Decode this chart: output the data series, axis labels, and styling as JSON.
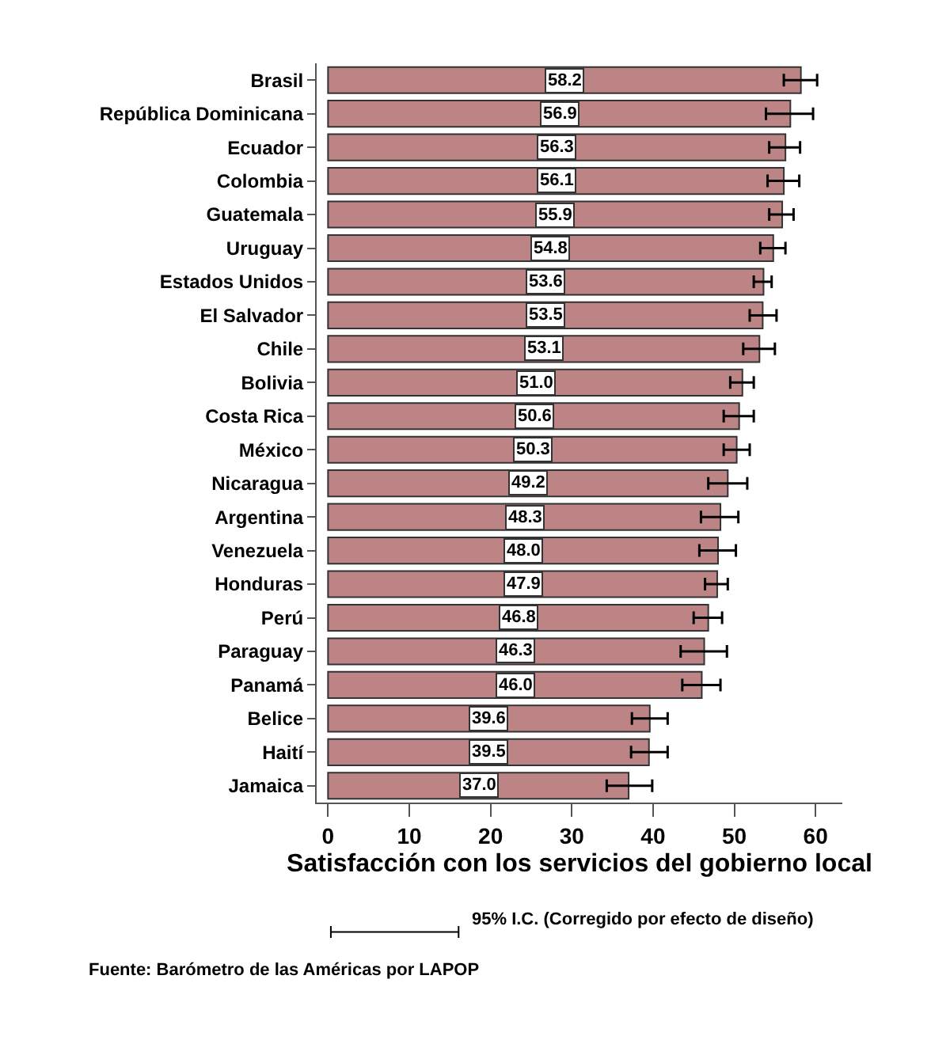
{
  "chart_data": {
    "type": "bar",
    "orientation": "horizontal",
    "xlabel": "Satisfacción con los servicios del gobierno local",
    "categories": [
      "Brasil",
      "República Dominicana",
      "Ecuador",
      "Colombia",
      "Guatemala",
      "Uruguay",
      "Estados Unidos",
      "El Salvador",
      "Chile",
      "Bolivia",
      "Costa Rica",
      "México",
      "Nicaragua",
      "Argentina",
      "Venezuela",
      "Honduras",
      "Perú",
      "Paraguay",
      "Panamá",
      "Belice",
      "Haití",
      "Jamaica"
    ],
    "values": [
      58.2,
      56.9,
      56.3,
      56.1,
      55.9,
      54.8,
      53.6,
      53.5,
      53.1,
      51.0,
      50.6,
      50.3,
      49.2,
      48.3,
      48.0,
      47.9,
      46.8,
      46.3,
      46.0,
      39.6,
      39.5,
      37.0
    ],
    "errors": [
      [
        56.1,
        60.2
      ],
      [
        53.9,
        59.7
      ],
      [
        54.3,
        58.1
      ],
      [
        54.1,
        58.0
      ],
      [
        54.3,
        57.3
      ],
      [
        53.2,
        56.3
      ],
      [
        52.4,
        54.6
      ],
      [
        51.9,
        55.2
      ],
      [
        51.1,
        55.0
      ],
      [
        49.5,
        52.4
      ],
      [
        48.7,
        52.4
      ],
      [
        48.7,
        51.9
      ],
      [
        46.8,
        51.6
      ],
      [
        45.9,
        50.5
      ],
      [
        45.7,
        50.2
      ],
      [
        46.4,
        49.2
      ],
      [
        45.0,
        48.5
      ],
      [
        43.4,
        49.1
      ],
      [
        43.6,
        48.3
      ],
      [
        37.4,
        41.8
      ],
      [
        37.3,
        41.8
      ],
      [
        34.3,
        39.9
      ]
    ],
    "color": "#bc8484",
    "value_labels": [
      "58.2",
      "56.9",
      "56.3",
      "56.1",
      "55.9",
      "54.8",
      "53.6",
      "53.5",
      "53.1",
      "51.0",
      "50.6",
      "50.3",
      "49.2",
      "48.3",
      "48.0",
      "47.9",
      "46.8",
      "46.3",
      "46.0",
      "39.6",
      "39.5",
      "37.0"
    ],
    "xlim": [
      -1.4,
      63.3
    ],
    "xticks": [
      0,
      10,
      20,
      30,
      40,
      50,
      60
    ],
    "legend": false,
    "annotations": [
      "95% I.C. (Corregido por efecto de diseño)",
      "Fuente: Barómetro de las Américas por LAPOP"
    ]
  }
}
